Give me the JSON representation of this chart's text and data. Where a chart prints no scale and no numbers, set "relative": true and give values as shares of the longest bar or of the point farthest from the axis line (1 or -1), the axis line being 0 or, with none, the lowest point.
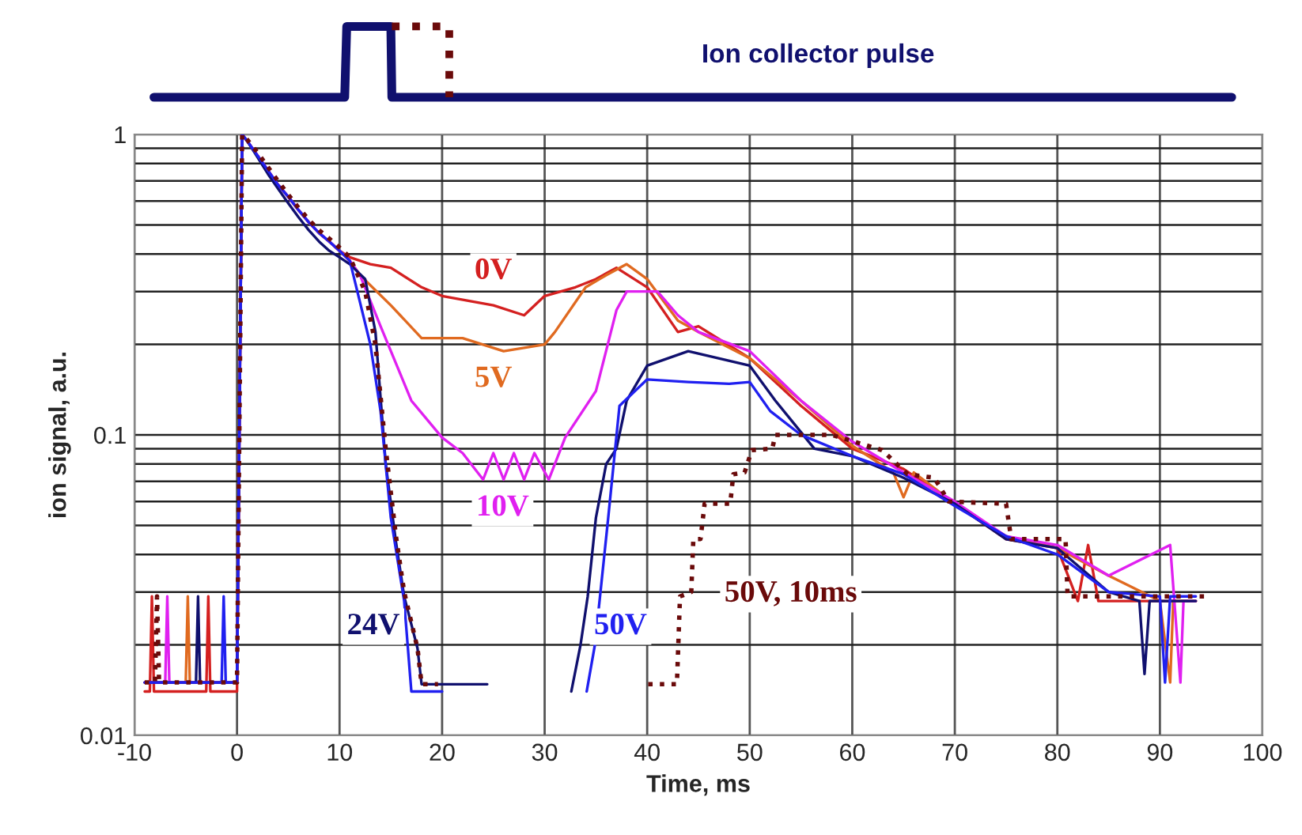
{
  "chart_data": [
    {
      "type": "line",
      "relative": true,
      "xlim": [
        -10,
        100
      ],
      "grid": false,
      "legend": false,
      "annotations": [
        "Ion collector pulse"
      ],
      "series": [
        {
          "color": "#10106e",
          "line_style": "solid",
          "x": [
            -8.1,
            10.5,
            10.7,
            15.0,
            15.1,
            97
          ],
          "values": [
            0,
            0,
            1,
            1,
            0,
            0
          ]
        },
        {
          "color": "#6a0a0a",
          "line_style": "dotted",
          "x": [
            15.1,
            20.7,
            20.7
          ],
          "values": [
            1,
            1,
            0
          ]
        }
      ]
    },
    {
      "type": "line",
      "xlabel": "Time, ms",
      "ylabel": "ion signal, a.u.",
      "log": "y",
      "xlim": [
        -10,
        100
      ],
      "ylim": [
        0.01,
        1
      ],
      "xticks": [
        -10,
        0,
        10,
        20,
        30,
        40,
        50,
        60,
        70,
        80,
        90,
        100
      ],
      "yticks": [
        0.01,
        0.1,
        1
      ],
      "grid": true,
      "legend": false,
      "annotations": [
        {
          "text": "0V",
          "x": 25,
          "y": 0.35
        },
        {
          "text": "5V",
          "x": 25,
          "y": 0.153
        },
        {
          "text": "10V",
          "x": 25.9,
          "y": 0.057
        },
        {
          "text": "24V",
          "x": 13.3,
          "y": 0.023
        },
        {
          "text": "50V",
          "x": 37.4,
          "y": 0.023
        },
        "50V, 10ms"
      ],
      "series": [
        {
          "color": "#d42020",
          "line_style": "solid",
          "x": [
            -9,
            -8.5,
            -8.3,
            -8.1,
            -6,
            -3,
            -2.8,
            -2.6,
            0,
            0.5,
            1,
            2,
            3,
            4,
            5,
            6,
            7,
            8,
            9,
            10,
            11,
            13,
            15,
            18,
            20,
            25,
            28,
            30,
            33,
            35,
            37,
            40,
            43,
            45,
            50,
            55,
            60,
            65,
            70,
            75,
            80,
            82,
            83,
            84,
            93.5
          ],
          "values": [
            0.014,
            0.014,
            0.029,
            0.014,
            0.014,
            0.014,
            0.029,
            0.014,
            0.014,
            1.0,
            0.95,
            0.85,
            0.76,
            0.68,
            0.62,
            0.56,
            0.51,
            0.47,
            0.44,
            0.41,
            0.39,
            0.37,
            0.36,
            0.31,
            0.29,
            0.27,
            0.25,
            0.29,
            0.31,
            0.33,
            0.36,
            0.31,
            0.22,
            0.23,
            0.18,
            0.125,
            0.09,
            0.077,
            0.059,
            0.045,
            0.042,
            0.028,
            0.043,
            0.028,
            0.028
          ]
        },
        {
          "color": "#e06a20",
          "line_style": "solid",
          "x": [
            -9,
            -5,
            -4.8,
            -4.6,
            0,
            0.5,
            1,
            2,
            3,
            4,
            5,
            6,
            7,
            8,
            9,
            10,
            11,
            12,
            15,
            18,
            22,
            26,
            30,
            31,
            34,
            36,
            38,
            40,
            43,
            45,
            50,
            55,
            60,
            64,
            65,
            66,
            70,
            75,
            80,
            85,
            90,
            91,
            91.3,
            93.5
          ],
          "values": [
            0.015,
            0.015,
            0.029,
            0.015,
            0.015,
            1.0,
            0.95,
            0.85,
            0.76,
            0.68,
            0.62,
            0.56,
            0.51,
            0.47,
            0.44,
            0.41,
            0.38,
            0.34,
            0.27,
            0.21,
            0.21,
            0.19,
            0.2,
            0.22,
            0.31,
            0.34,
            0.37,
            0.33,
            0.24,
            0.22,
            0.18,
            0.13,
            0.092,
            0.075,
            0.062,
            0.075,
            0.059,
            0.046,
            0.042,
            0.034,
            0.028,
            0.015,
            0.028,
            0.028
          ]
        },
        {
          "color": "#e020f0",
          "line_style": "solid",
          "x": [
            -9,
            -7,
            -6.8,
            -6.6,
            0,
            0.5,
            1,
            2,
            3,
            4,
            5,
            6,
            7,
            8,
            9,
            10,
            11,
            12,
            14,
            17,
            20,
            22,
            24,
            25,
            26,
            27,
            28,
            29,
            30.4,
            32,
            35,
            37,
            38,
            41,
            43,
            45,
            50,
            55,
            60,
            65,
            70,
            75,
            80,
            85,
            91,
            92,
            92.3,
            93.5
          ],
          "values": [
            0.015,
            0.015,
            0.029,
            0.015,
            0.015,
            1.0,
            0.95,
            0.85,
            0.76,
            0.68,
            0.62,
            0.56,
            0.51,
            0.47,
            0.44,
            0.41,
            0.38,
            0.34,
            0.23,
            0.13,
            0.098,
            0.087,
            0.071,
            0.087,
            0.071,
            0.087,
            0.071,
            0.087,
            0.071,
            0.098,
            0.14,
            0.26,
            0.3,
            0.3,
            0.25,
            0.22,
            0.19,
            0.13,
            0.095,
            0.075,
            0.06,
            0.046,
            0.043,
            0.034,
            0.043,
            0.015,
            0.028,
            0.028
          ]
        },
        {
          "color": "#10106e",
          "line_style": "solid",
          "x": [
            -9,
            -4,
            -3.8,
            -3.6,
            0,
            0.5,
            1,
            2,
            3,
            4,
            5,
            6,
            7,
            8,
            9,
            10,
            11,
            12.5,
            13.5,
            14.5,
            15.5,
            16.3,
            17.6,
            18,
            24.4,
            null,
            32.6,
            33.5,
            34.2,
            35,
            36,
            37,
            38,
            40,
            44,
            50,
            52.5,
            56.3,
            60,
            65,
            70,
            75,
            80,
            85,
            88,
            88.5,
            89,
            93.5
          ],
          "values": [
            0.015,
            0.015,
            0.029,
            0.015,
            0.015,
            1.0,
            0.95,
            0.84,
            0.74,
            0.66,
            0.59,
            0.53,
            0.48,
            0.44,
            0.41,
            0.39,
            0.37,
            0.33,
            0.22,
            0.08,
            0.044,
            0.029,
            0.0195,
            0.0148,
            0.0148,
            null,
            0.014,
            0.02,
            0.029,
            0.053,
            0.08,
            0.09,
            0.13,
            0.17,
            0.19,
            0.17,
            0.13,
            0.09,
            0.085,
            0.072,
            0.059,
            0.045,
            0.042,
            0.03,
            0.028,
            0.016,
            0.028,
            0.028
          ]
        },
        {
          "color": "#2020f0",
          "line_style": "solid",
          "x": [
            -9,
            -1.5,
            -1.3,
            -1.1,
            0,
            0.5,
            1,
            2,
            3,
            4,
            5,
            6,
            7,
            8,
            9,
            10,
            11,
            13,
            14,
            15,
            16.3,
            17,
            20,
            null,
            34.1,
            34.9,
            35.4,
            36.2,
            37.3,
            40,
            44,
            48,
            50,
            52,
            55,
            60,
            65,
            70,
            75,
            80,
            85,
            90,
            90.5,
            91,
            93.5
          ],
          "values": [
            0.015,
            0.015,
            0.029,
            0.015,
            0.015,
            1.0,
            0.95,
            0.85,
            0.76,
            0.68,
            0.62,
            0.56,
            0.51,
            0.47,
            0.44,
            0.41,
            0.38,
            0.2,
            0.12,
            0.053,
            0.028,
            0.014,
            0.014,
            null,
            0.014,
            0.02,
            0.029,
            0.053,
            0.125,
            0.153,
            0.15,
            0.148,
            0.15,
            0.12,
            0.1,
            0.085,
            0.074,
            0.058,
            0.046,
            0.04,
            0.03,
            0.029,
            0.015,
            0.029,
            0.029
          ]
        },
        {
          "color": "#6a0a0a",
          "line_style": "dotted",
          "x": [
            -9,
            -8,
            -7.8,
            -7.6,
            0,
            0.5,
            1,
            2,
            3,
            4,
            5,
            6,
            7,
            8,
            9,
            10,
            11,
            12.5,
            13.5,
            14.5,
            15.5,
            16.3,
            17.6,
            18,
            19.6,
            null,
            40.1,
            42.9,
            43.2,
            44.3,
            44.5,
            45.2,
            45.6,
            48.1,
            48.4,
            49.5,
            50.2,
            52.2,
            52.5,
            54,
            58,
            62.9,
            65.4,
            68,
            69.4,
            75,
            75.5,
            80.8,
            81,
            94.6
          ],
          "values": [
            0.015,
            0.015,
            0.029,
            0.015,
            0.015,
            1.0,
            0.96,
            0.87,
            0.78,
            0.7,
            0.63,
            0.57,
            0.52,
            0.48,
            0.45,
            0.42,
            0.39,
            0.3,
            0.2,
            0.09,
            0.046,
            0.03,
            0.0195,
            0.0148,
            0.0148,
            null,
            0.0148,
            0.0148,
            0.029,
            0.03,
            0.045,
            0.045,
            0.059,
            0.059,
            0.074,
            0.075,
            0.089,
            0.09,
            0.1,
            0.1,
            0.1,
            0.089,
            0.074,
            0.072,
            0.06,
            0.059,
            0.045,
            0.045,
            0.029,
            0.029
          ]
        }
      ]
    }
  ]
}
